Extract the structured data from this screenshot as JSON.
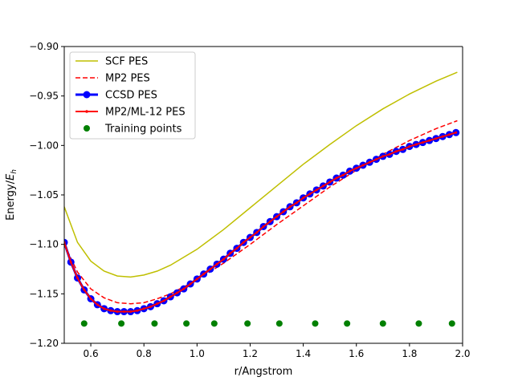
{
  "chart_data": {
    "type": "line",
    "title": "",
    "xlabel": "r/Angstrom",
    "ylabel": "Energy/",
    "ylabel_symbol": "E",
    "ylabel_subscript": "h",
    "xlim": [
      0.5,
      2.0
    ],
    "ylim": [
      -1.2,
      -0.9
    ],
    "xticks": [
      0.6,
      0.8,
      1.0,
      1.2,
      1.4,
      1.6,
      1.8,
      2.0
    ],
    "xtick_labels": [
      "0.6",
      "0.8",
      "1.0",
      "1.2",
      "1.4",
      "1.6",
      "1.8",
      "2.0"
    ],
    "yticks": [
      -1.2,
      -1.15,
      -1.1,
      -1.05,
      -1.0,
      -0.95,
      -0.9
    ],
    "ytick_labels": [
      "−1.20",
      "−1.15",
      "−1.10",
      "−1.05",
      "−1.00",
      "−0.95",
      "−0.90"
    ],
    "grid": false,
    "legend_placement": "top-left",
    "series": [
      {
        "name": "SCF PES",
        "color": "#bfbf00",
        "style": "solid",
        "x": [
          0.5,
          0.55,
          0.6,
          0.65,
          0.7,
          0.75,
          0.8,
          0.85,
          0.9,
          1.0,
          1.1,
          1.2,
          1.3,
          1.4,
          1.5,
          1.6,
          1.7,
          1.8,
          1.9,
          1.98
        ],
        "y": [
          -1.062,
          -1.098,
          -1.117,
          -1.127,
          -1.132,
          -1.133,
          -1.131,
          -1.127,
          -1.121,
          -1.105,
          -1.085,
          -1.063,
          -1.041,
          -1.019,
          -0.999,
          -0.98,
          -0.963,
          -0.948,
          -0.935,
          -0.926
        ]
      },
      {
        "name": "MP2 PES",
        "color": "#ff0000",
        "style": "dashed",
        "x": [
          0.5,
          0.55,
          0.6,
          0.65,
          0.7,
          0.75,
          0.8,
          0.85,
          0.9,
          1.0,
          1.1,
          1.2,
          1.3,
          1.4,
          1.5,
          1.6,
          1.7,
          1.8,
          1.9,
          1.98
        ],
        "y": [
          -1.1,
          -1.128,
          -1.145,
          -1.154,
          -1.159,
          -1.16,
          -1.159,
          -1.155,
          -1.15,
          -1.136,
          -1.119,
          -1.1,
          -1.08,
          -1.061,
          -1.042,
          -1.025,
          -1.009,
          -0.995,
          -0.983,
          -0.975
        ]
      },
      {
        "name": "CCSD PES",
        "color": "#0000ff",
        "style": "solid-circles",
        "x": [
          0.5,
          0.525,
          0.55,
          0.575,
          0.6,
          0.625,
          0.65,
          0.675,
          0.7,
          0.725,
          0.75,
          0.775,
          0.8,
          0.825,
          0.85,
          0.875,
          0.9,
          0.925,
          0.95,
          0.975,
          1.0,
          1.025,
          1.05,
          1.075,
          1.1,
          1.125,
          1.15,
          1.175,
          1.2,
          1.225,
          1.25,
          1.275,
          1.3,
          1.325,
          1.35,
          1.375,
          1.4,
          1.425,
          1.45,
          1.475,
          1.5,
          1.525,
          1.55,
          1.575,
          1.6,
          1.625,
          1.65,
          1.675,
          1.7,
          1.725,
          1.75,
          1.775,
          1.8,
          1.825,
          1.85,
          1.875,
          1.9,
          1.925,
          1.95,
          1.975
        ],
        "y": [
          -1.098,
          -1.118,
          -1.134,
          -1.146,
          -1.155,
          -1.161,
          -1.165,
          -1.167,
          -1.168,
          -1.168,
          -1.168,
          -1.167,
          -1.165,
          -1.163,
          -1.16,
          -1.157,
          -1.153,
          -1.149,
          -1.145,
          -1.14,
          -1.135,
          -1.13,
          -1.125,
          -1.12,
          -1.115,
          -1.109,
          -1.104,
          -1.098,
          -1.093,
          -1.088,
          -1.082,
          -1.077,
          -1.072,
          -1.067,
          -1.062,
          -1.058,
          -1.053,
          -1.049,
          -1.045,
          -1.041,
          -1.037,
          -1.033,
          -1.03,
          -1.026,
          -1.023,
          -1.02,
          -1.017,
          -1.014,
          -1.011,
          -1.009,
          -1.006,
          -1.004,
          -1.001,
          -0.999,
          -0.997,
          -0.995,
          -0.993,
          -0.991,
          -0.989,
          -0.987
        ]
      },
      {
        "name": "MP2/ML-12 PES",
        "color": "#ff0000",
        "style": "solid-dots",
        "x": [
          0.5,
          0.525,
          0.55,
          0.575,
          0.6,
          0.625,
          0.65,
          0.675,
          0.7,
          0.725,
          0.75,
          0.775,
          0.8,
          0.825,
          0.85,
          0.875,
          0.9,
          0.925,
          0.95,
          0.975,
          1.0,
          1.025,
          1.05,
          1.075,
          1.1,
          1.125,
          1.15,
          1.175,
          1.2,
          1.225,
          1.25,
          1.275,
          1.3,
          1.325,
          1.35,
          1.375,
          1.4,
          1.425,
          1.45,
          1.475,
          1.5,
          1.525,
          1.55,
          1.575,
          1.6,
          1.625,
          1.65,
          1.675,
          1.7,
          1.725,
          1.75,
          1.775,
          1.8,
          1.825,
          1.85,
          1.875,
          1.9,
          1.925,
          1.95,
          1.975
        ],
        "y": [
          -1.098,
          -1.118,
          -1.134,
          -1.146,
          -1.155,
          -1.161,
          -1.165,
          -1.167,
          -1.168,
          -1.168,
          -1.168,
          -1.167,
          -1.165,
          -1.163,
          -1.16,
          -1.157,
          -1.153,
          -1.149,
          -1.145,
          -1.14,
          -1.135,
          -1.13,
          -1.125,
          -1.12,
          -1.115,
          -1.109,
          -1.104,
          -1.098,
          -1.093,
          -1.088,
          -1.082,
          -1.077,
          -1.072,
          -1.067,
          -1.062,
          -1.058,
          -1.053,
          -1.049,
          -1.045,
          -1.041,
          -1.037,
          -1.033,
          -1.03,
          -1.026,
          -1.023,
          -1.02,
          -1.017,
          -1.014,
          -1.011,
          -1.009,
          -1.006,
          -1.004,
          -1.001,
          -0.999,
          -0.997,
          -0.995,
          -0.993,
          -0.991,
          -0.989,
          -0.987
        ]
      },
      {
        "name": "Training points",
        "color": "#008000",
        "style": "markers",
        "x": [
          0.575,
          0.715,
          0.84,
          0.96,
          1.065,
          1.19,
          1.31,
          1.445,
          1.565,
          1.7,
          1.835,
          1.96
        ],
        "y": [
          -1.18,
          -1.18,
          -1.18,
          -1.18,
          -1.18,
          -1.18,
          -1.18,
          -1.18,
          -1.18,
          -1.18,
          -1.18,
          -1.18
        ]
      }
    ]
  }
}
